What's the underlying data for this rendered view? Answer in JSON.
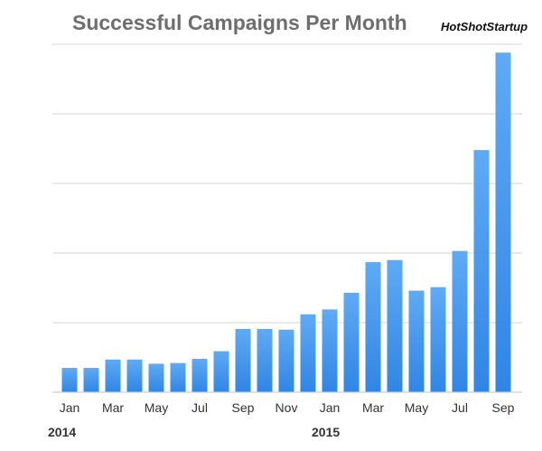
{
  "brand": "HotShotStartup",
  "chart_data": {
    "type": "bar",
    "title": "Successful Campaigns Per Month",
    "xlabel": "",
    "ylabel": "",
    "ylim": [
      0,
      5
    ],
    "grid": true,
    "legend": "none",
    "bar_color": "#2f86e6",
    "bar_color_light": "#5eaaf5",
    "categories": [
      "Jan 2014",
      "Feb 2014",
      "Mar 2014",
      "Apr 2014",
      "May 2014",
      "Jun 2014",
      "Jul 2014",
      "Aug 2014",
      "Sep 2014",
      "Oct 2014",
      "Nov 2014",
      "Dec 2014",
      "Jan 2015",
      "Feb 2015",
      "Mar 2015",
      "Apr 2015",
      "May 2015",
      "Jun 2015",
      "Jul 2015",
      "Aug 2015",
      "Sep 2015"
    ],
    "values": [
      0.35,
      0.35,
      0.47,
      0.47,
      0.41,
      0.42,
      0.48,
      0.59,
      0.91,
      0.91,
      0.9,
      1.12,
      1.19,
      1.43,
      1.87,
      1.9,
      1.46,
      1.51,
      2.03,
      3.48,
      4.88
    ],
    "x_tick_labels": [
      "Jan",
      "Mar",
      "May",
      "Jul",
      "Sep",
      "Nov",
      "Jan",
      "Mar",
      "May",
      "Jul",
      "Sep"
    ],
    "year_labels": [
      "2014",
      "2015"
    ]
  }
}
